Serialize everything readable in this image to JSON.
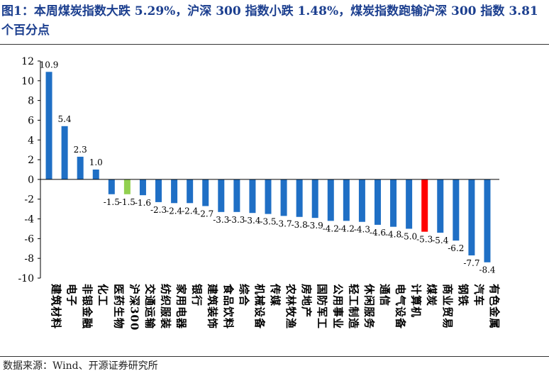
{
  "title": "图1：本周煤炭指数大跌 5.29%，沪深 300 指数小跌 1.48%，煤炭指数跑输沪深 300 指数 3.81 个百分点",
  "source": "数据来源：Wind、开源证券研究所",
  "colors": {
    "default": "#1f6fc5",
    "benchmark": "#92d050",
    "coal": "#ff0000",
    "title": "#1c3f8f"
  },
  "chart_data": {
    "type": "bar",
    "title": "",
    "xlabel": "",
    "ylabel": "",
    "ylim": [
      -10,
      12
    ],
    "yticks": [
      -10,
      -8,
      -6,
      -4,
      -2,
      0,
      2,
      4,
      6,
      8,
      10,
      12
    ],
    "grid": false,
    "legend": "none",
    "categories": [
      "建筑材料",
      "电子",
      "非银金融",
      "化工",
      "医药生物",
      "沪深300",
      "交通运输",
      "纺织服装",
      "家用电器",
      "银行",
      "建筑装饰",
      "食品饮料",
      "综合",
      "机械设备",
      "传媒",
      "农林牧渔",
      "房地产",
      "国防军工",
      "公用事业",
      "轻工制造",
      "休闲服务",
      "通信",
      "电气设备",
      "计算机",
      "煤炭",
      "商业贸易",
      "钢铁",
      "汽车",
      "有色金属"
    ],
    "values": [
      10.9,
      5.4,
      2.3,
      1.0,
      -1.5,
      -1.5,
      -1.6,
      -2.3,
      -2.4,
      -2.4,
      -2.7,
      -3.3,
      -3.3,
      -3.4,
      -3.5,
      -3.7,
      -3.8,
      -3.9,
      -4.2,
      -4.2,
      -4.3,
      -4.6,
      -4.8,
      -5.0,
      -5.3,
      -5.4,
      -6.2,
      -7.7,
      -8.4
    ],
    "data_labels": [
      "10.9",
      "5.4",
      "2.3",
      "1.0",
      "-1.5",
      "-1.5",
      "-1.6",
      "-2.3",
      "-2.4",
      "-2.4",
      "-2.7",
      "-3.3",
      "-3.3",
      "-3.4",
      "-3.5",
      "-3.7",
      "-3.8",
      "-3.9",
      "-4.2",
      "-4.2",
      "-4.3",
      "-4.6",
      "-4.8",
      "-5.0",
      "-5.3",
      "-5.4",
      "-6.2",
      "-7.7",
      "-8.4"
    ],
    "highlight": {
      "沪深300": "benchmark",
      "煤炭": "coal"
    }
  }
}
